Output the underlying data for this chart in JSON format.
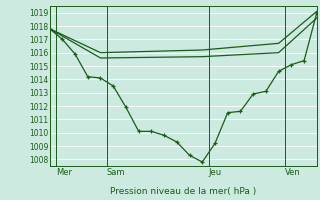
{
  "bg_color": "#cceae0",
  "grid_color": "#b8ddd4",
  "plot_bg": "#cceae0",
  "line_color": "#1a5c1a",
  "ylim": [
    1007.5,
    1019.5
  ],
  "yticks": [
    1008,
    1009,
    1010,
    1011,
    1012,
    1013,
    1014,
    1015,
    1016,
    1017,
    1018,
    1019
  ],
  "xlim": [
    0,
    21
  ],
  "day_labels": [
    "Mer",
    "Sam",
    "Jeu",
    "Ven"
  ],
  "day_positions": [
    0.5,
    4.5,
    12.5,
    18.5
  ],
  "day_vlines": [
    0.5,
    4.5,
    12.5,
    18.5
  ],
  "xlabel": "Pression niveau de la mer( hPa )",
  "line1_x": [
    0,
    1,
    2,
    3,
    4,
    5,
    6,
    7,
    8,
    9,
    10,
    11,
    12,
    13,
    14,
    15,
    16,
    17,
    18,
    19,
    20,
    21
  ],
  "line1_y": [
    1017.8,
    1017.0,
    1015.9,
    1014.2,
    1014.1,
    1013.5,
    1011.9,
    1010.1,
    1010.1,
    1009.8,
    1009.3,
    1008.3,
    1007.8,
    1009.2,
    1011.5,
    1011.6,
    1012.9,
    1013.1,
    1014.6,
    1015.1,
    1015.4,
    1019.0
  ],
  "line2_x": [
    0,
    4,
    12,
    18,
    21
  ],
  "line2_y": [
    1017.8,
    1016.0,
    1016.2,
    1016.7,
    1019.1
  ],
  "line3_x": [
    0,
    4,
    12,
    18,
    21
  ],
  "line3_y": [
    1017.8,
    1015.6,
    1015.7,
    1016.0,
    1018.6
  ],
  "marker_size": 2.5,
  "linewidth": 0.9
}
